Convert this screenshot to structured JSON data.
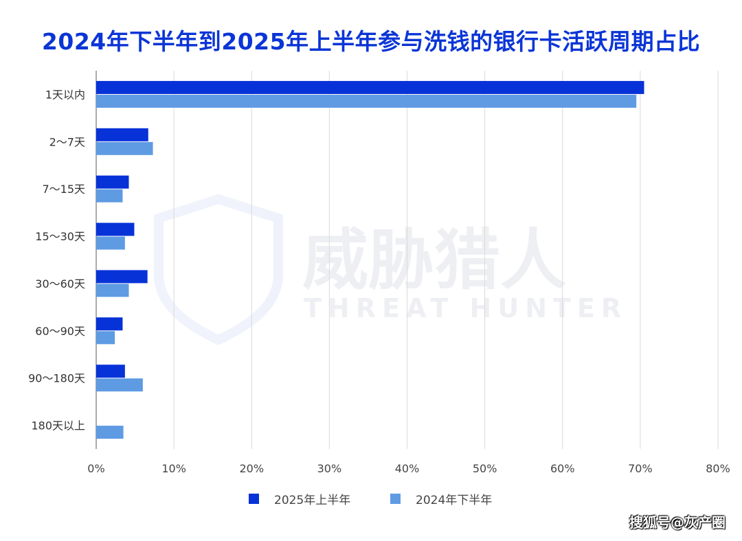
{
  "chart_data": {
    "type": "bar",
    "orientation": "horizontal",
    "title": "2024年下半年到2025年上半年参与洗钱的银行卡活跃周期占比",
    "categories": [
      "1天以内",
      "2～7天",
      "7～15天",
      "15～30天",
      "30～60天",
      "60～90天",
      "90～180天",
      "180天以上"
    ],
    "series": [
      {
        "name": "2025年上半年",
        "color": "#0732d8",
        "values": [
          70.5,
          6.7,
          4.2,
          4.9,
          6.6,
          3.4,
          3.7,
          0
        ]
      },
      {
        "name": "2024年下半年",
        "color": "#5f9be3",
        "values": [
          69.5,
          7.3,
          3.4,
          3.7,
          4.2,
          2.4,
          6.0,
          3.5
        ]
      }
    ],
    "xlim": [
      0,
      80
    ],
    "xticks": [
      "0%",
      "10%",
      "20%",
      "30%",
      "40%",
      "50%",
      "60%",
      "70%",
      "80%"
    ],
    "grid": "vertical",
    "legend_position": "bottom"
  },
  "watermark": {
    "logo_text": "威胁猎人",
    "logo_subtext": "THREAT HUNTER"
  },
  "credit": "搜狐号@灰产圈"
}
